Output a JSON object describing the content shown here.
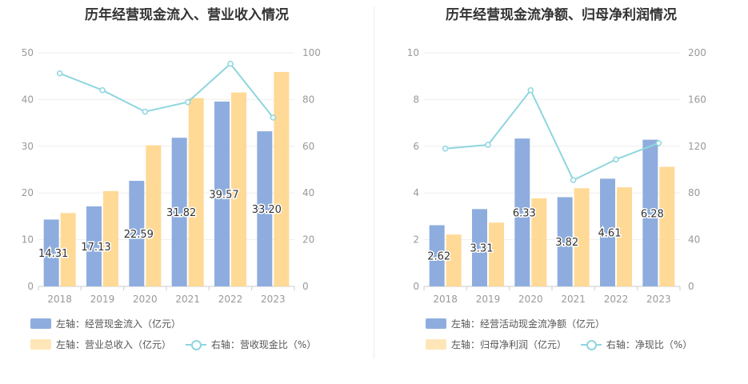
{
  "colors": {
    "primary_bar": "#8eadde",
    "secondary_bar": "#ffd996",
    "line": "#8fd6de",
    "axis_text": "#999999",
    "grid": "#eeeeee"
  },
  "chart_data": [
    {
      "type": "bar",
      "title": "历年经营现金流入、营业收入情况",
      "categories": [
        "2018",
        "2019",
        "2020",
        "2021",
        "2022",
        "2023"
      ],
      "y_left": {
        "ticks": [
          "0",
          "10",
          "20",
          "30",
          "40",
          "50"
        ],
        "ylim": [
          0,
          50
        ]
      },
      "y_right": {
        "ticks": [
          "0",
          "20",
          "40",
          "60",
          "80",
          "100"
        ],
        "ylim": [
          0,
          100
        ]
      },
      "series": [
        {
          "name": "左轴：经营现金流入（亿元）",
          "kind": "bar",
          "axis": "left",
          "values": [
            14.31,
            17.13,
            22.59,
            31.82,
            39.57,
            33.2
          ],
          "labels": [
            "14.31",
            "17.13",
            "22.59",
            "31.82",
            "39.57",
            "33.20"
          ]
        },
        {
          "name": "左轴：营业总收入（亿元）",
          "kind": "bar",
          "axis": "left",
          "values": [
            15.7,
            20.4,
            30.2,
            40.3,
            41.5,
            45.9
          ]
        },
        {
          "name": "右轴：营收现金比（%）",
          "kind": "line",
          "axis": "right",
          "values": [
            91.2,
            84.0,
            74.8,
            78.9,
            95.3,
            72.3
          ]
        }
      ],
      "legend_rows": [
        [
          "左轴：经营现金流入（亿元）"
        ],
        [
          "左轴：营业总收入（亿元）",
          "右轴：营收现金比（%）"
        ]
      ]
    },
    {
      "type": "bar",
      "title": "历年经营现金流净额、归母净利润情况",
      "categories": [
        "2018",
        "2019",
        "2020",
        "2021",
        "2022",
        "2023"
      ],
      "y_left": {
        "ticks": [
          "0",
          "2",
          "4",
          "6",
          "8",
          "10"
        ],
        "ylim": [
          0,
          10
        ]
      },
      "y_right": {
        "ticks": [
          "0",
          "40",
          "80",
          "120",
          "160",
          "200"
        ],
        "ylim": [
          0,
          200
        ]
      },
      "series": [
        {
          "name": "左轴：经营活动现金流净额（亿元）",
          "kind": "bar",
          "axis": "left",
          "values": [
            2.62,
            3.31,
            6.33,
            3.82,
            4.61,
            6.28
          ],
          "labels": [
            "2.62",
            "3.31",
            "6.33",
            "3.82",
            "4.61",
            "6.28"
          ]
        },
        {
          "name": "左轴：归母净利润（亿元）",
          "kind": "bar",
          "axis": "left",
          "values": [
            2.22,
            2.73,
            3.77,
            4.2,
            4.24,
            5.12
          ]
        },
        {
          "name": "右轴：净现比（%）",
          "kind": "line",
          "axis": "right",
          "values": [
            118.0,
            121.2,
            168.0,
            91.0,
            108.7,
            122.7
          ]
        }
      ],
      "legend_rows": [
        [
          "左轴：经营活动现金流净额（亿元）"
        ],
        [
          "左轴：归母净利润（亿元）",
          "右轴：净现比（%）"
        ]
      ]
    }
  ]
}
